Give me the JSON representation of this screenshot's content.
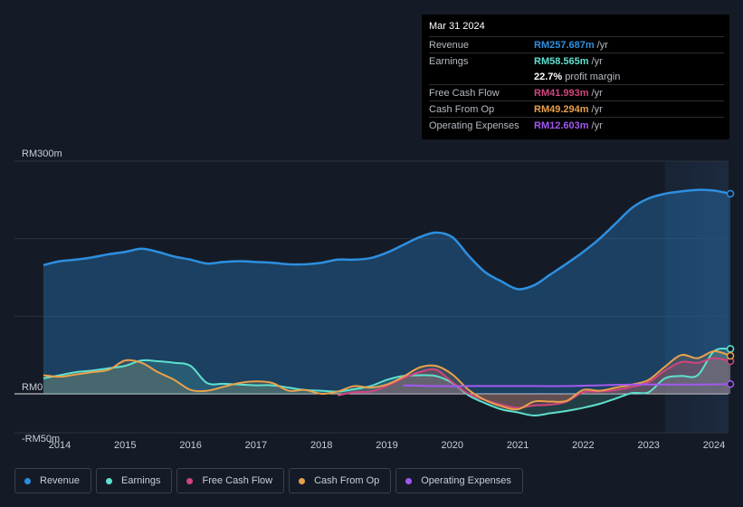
{
  "tooltip": {
    "date": "Mar 31 2024",
    "rows": [
      {
        "label": "Revenue",
        "value": "RM257.687m",
        "unit": "/yr",
        "color": "#2d8fe0"
      },
      {
        "label": "Earnings",
        "value": "RM58.565m",
        "unit": "/yr",
        "color": "#5fe0cf"
      },
      {
        "label": "",
        "value": "22.7%",
        "unit": "profit margin",
        "color": "#ffffff"
      },
      {
        "label": "Free Cash Flow",
        "value": "RM41.993m",
        "unit": "/yr",
        "color": "#d1457f"
      },
      {
        "label": "Cash From Op",
        "value": "RM49.294m",
        "unit": "/yr",
        "color": "#e9a14b"
      },
      {
        "label": "Operating Expenses",
        "value": "RM12.603m",
        "unit": "/yr",
        "color": "#a259f0"
      }
    ]
  },
  "legend": [
    {
      "label": "Revenue",
      "color": "#2d8fe0"
    },
    {
      "label": "Earnings",
      "color": "#5fe0cf"
    },
    {
      "label": "Free Cash Flow",
      "color": "#d1457f"
    },
    {
      "label": "Cash From Op",
      "color": "#e9a14b"
    },
    {
      "label": "Operating Expenses",
      "color": "#a259f0"
    }
  ],
  "chart_data": {
    "type": "area",
    "title": "",
    "xlabel": "",
    "ylabel": "",
    "ylim": [
      -50,
      300
    ],
    "xlim": [
      2013.35,
      2024.25
    ],
    "y_tick_labels": [
      {
        "value": 300,
        "label": "RM300m"
      },
      {
        "value": 0,
        "label": "RM0"
      },
      {
        "value": -50,
        "label": "-RM50m"
      }
    ],
    "x_ticks": [
      2014,
      2015,
      2016,
      2017,
      2018,
      2019,
      2020,
      2021,
      2022,
      2023,
      2024
    ],
    "forecast_start": 2023.25,
    "series": [
      {
        "name": "Revenue",
        "color": "#2d8fe0",
        "points": [
          [
            2013.75,
            166
          ],
          [
            2014.0,
            171
          ],
          [
            2014.25,
            173
          ],
          [
            2014.5,
            176
          ],
          [
            2014.75,
            180
          ],
          [
            2015.0,
            183
          ],
          [
            2015.25,
            187
          ],
          [
            2015.5,
            183
          ],
          [
            2015.75,
            177
          ],
          [
            2016.0,
            173
          ],
          [
            2016.25,
            168
          ],
          [
            2016.5,
            170
          ],
          [
            2016.75,
            171
          ],
          [
            2017.0,
            170
          ],
          [
            2017.25,
            169
          ],
          [
            2017.5,
            167
          ],
          [
            2017.75,
            167
          ],
          [
            2018.0,
            169
          ],
          [
            2018.25,
            173
          ],
          [
            2018.5,
            173
          ],
          [
            2018.75,
            175
          ],
          [
            2019.0,
            182
          ],
          [
            2019.25,
            192
          ],
          [
            2019.5,
            202
          ],
          [
            2019.75,
            208
          ],
          [
            2020.0,
            202
          ],
          [
            2020.25,
            178
          ],
          [
            2020.5,
            157
          ],
          [
            2020.75,
            145
          ],
          [
            2021.0,
            135
          ],
          [
            2021.25,
            140
          ],
          [
            2021.5,
            154
          ],
          [
            2021.75,
            168
          ],
          [
            2022.0,
            183
          ],
          [
            2022.25,
            200
          ],
          [
            2022.5,
            220
          ],
          [
            2022.75,
            240
          ],
          [
            2023.0,
            252
          ],
          [
            2023.25,
            258
          ],
          [
            2023.5,
            261
          ],
          [
            2023.75,
            263
          ],
          [
            2024.0,
            262
          ],
          [
            2024.25,
            258
          ]
        ]
      },
      {
        "name": "Earnings",
        "color": "#5fe0cf",
        "points": [
          [
            2013.75,
            20
          ],
          [
            2014.0,
            24
          ],
          [
            2014.25,
            28
          ],
          [
            2014.5,
            30
          ],
          [
            2014.75,
            33
          ],
          [
            2015.0,
            36
          ],
          [
            2015.25,
            43
          ],
          [
            2015.5,
            42
          ],
          [
            2015.75,
            40
          ],
          [
            2016.0,
            36
          ],
          [
            2016.25,
            14
          ],
          [
            2016.5,
            13
          ],
          [
            2016.75,
            12
          ],
          [
            2017.0,
            11
          ],
          [
            2017.25,
            11
          ],
          [
            2017.5,
            8
          ],
          [
            2017.75,
            5
          ],
          [
            2018.0,
            4
          ],
          [
            2018.25,
            3
          ],
          [
            2018.5,
            6
          ],
          [
            2018.75,
            10
          ],
          [
            2019.0,
            18
          ],
          [
            2019.25,
            23
          ],
          [
            2019.5,
            24
          ],
          [
            2019.75,
            23
          ],
          [
            2020.0,
            14
          ],
          [
            2020.25,
            -2
          ],
          [
            2020.5,
            -12
          ],
          [
            2020.75,
            -20
          ],
          [
            2021.0,
            -24
          ],
          [
            2021.25,
            -28
          ],
          [
            2021.5,
            -25
          ],
          [
            2021.75,
            -22
          ],
          [
            2022.0,
            -18
          ],
          [
            2022.25,
            -13
          ],
          [
            2022.5,
            -6
          ],
          [
            2022.75,
            1
          ],
          [
            2023.0,
            2
          ],
          [
            2023.25,
            20
          ],
          [
            2023.5,
            23
          ],
          [
            2023.75,
            24
          ],
          [
            2024.0,
            55
          ],
          [
            2024.25,
            58
          ]
        ]
      },
      {
        "name": "Free Cash Flow",
        "color": "#d1457f",
        "points": [
          [
            2018.25,
            -2
          ],
          [
            2018.5,
            2
          ],
          [
            2018.75,
            3
          ],
          [
            2019.0,
            10
          ],
          [
            2019.25,
            20
          ],
          [
            2019.5,
            28
          ],
          [
            2019.75,
            31
          ],
          [
            2020.0,
            15
          ],
          [
            2020.25,
            0
          ],
          [
            2020.5,
            -8
          ],
          [
            2020.75,
            -14
          ],
          [
            2021.0,
            -18
          ],
          [
            2021.25,
            -15
          ],
          [
            2021.5,
            -14
          ],
          [
            2021.75,
            -10
          ],
          [
            2022.0,
            2
          ],
          [
            2022.25,
            3
          ],
          [
            2022.5,
            5
          ],
          [
            2022.75,
            9
          ],
          [
            2023.0,
            15
          ],
          [
            2023.25,
            30
          ],
          [
            2023.5,
            41
          ],
          [
            2023.75,
            40
          ],
          [
            2024.0,
            46
          ],
          [
            2024.25,
            42
          ]
        ]
      },
      {
        "name": "Cash From Op",
        "color": "#e9a14b",
        "points": [
          [
            2013.75,
            24
          ],
          [
            2014.0,
            22
          ],
          [
            2014.25,
            25
          ],
          [
            2014.5,
            28
          ],
          [
            2014.75,
            31
          ],
          [
            2015.0,
            43
          ],
          [
            2015.25,
            40
          ],
          [
            2015.5,
            28
          ],
          [
            2015.75,
            18
          ],
          [
            2016.0,
            5
          ],
          [
            2016.25,
            4
          ],
          [
            2016.5,
            9
          ],
          [
            2016.75,
            14
          ],
          [
            2017.0,
            16
          ],
          [
            2017.25,
            14
          ],
          [
            2017.5,
            4
          ],
          [
            2017.75,
            5
          ],
          [
            2018.0,
            0
          ],
          [
            2018.25,
            3
          ],
          [
            2018.5,
            10
          ],
          [
            2018.75,
            8
          ],
          [
            2019.0,
            12
          ],
          [
            2019.25,
            22
          ],
          [
            2019.5,
            34
          ],
          [
            2019.75,
            36
          ],
          [
            2020.0,
            25
          ],
          [
            2020.25,
            5
          ],
          [
            2020.5,
            -8
          ],
          [
            2020.75,
            -16
          ],
          [
            2021.0,
            -20
          ],
          [
            2021.25,
            -10
          ],
          [
            2021.5,
            -10
          ],
          [
            2021.75,
            -9
          ],
          [
            2022.0,
            5
          ],
          [
            2022.25,
            4
          ],
          [
            2022.5,
            8
          ],
          [
            2022.75,
            12
          ],
          [
            2023.0,
            18
          ],
          [
            2023.25,
            35
          ],
          [
            2023.5,
            50
          ],
          [
            2023.75,
            46
          ],
          [
            2024.0,
            55
          ],
          [
            2024.25,
            49
          ]
        ]
      },
      {
        "name": "Operating Expenses",
        "color": "#a259f0",
        "points": [
          [
            2019.25,
            11
          ],
          [
            2019.75,
            10
          ],
          [
            2020.25,
            10
          ],
          [
            2020.75,
            10
          ],
          [
            2021.25,
            10
          ],
          [
            2021.75,
            10
          ],
          [
            2022.25,
            11
          ],
          [
            2022.75,
            12
          ],
          [
            2023.25,
            12
          ],
          [
            2023.75,
            12
          ],
          [
            2024.25,
            12.6
          ]
        ]
      }
    ]
  }
}
